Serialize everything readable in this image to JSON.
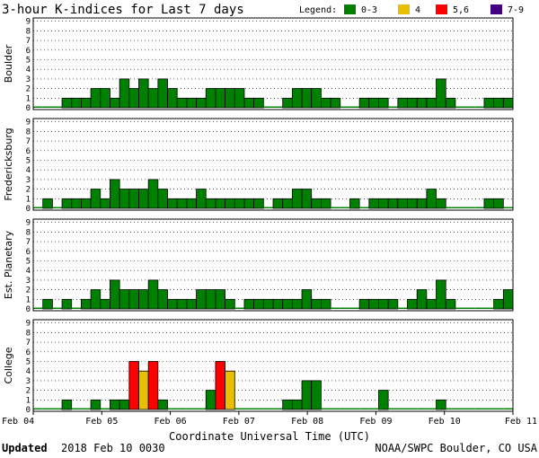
{
  "chart_data": {
    "type": "bar",
    "title": "3-hour K-indices for Last 7 days",
    "legend": {
      "label": "Legend:",
      "placement": "top-right",
      "items": [
        {
          "label": "0-3",
          "color": "#008000"
        },
        {
          "label": "4",
          "color": "#e8c000"
        },
        {
          "label": "5,6",
          "color": "#ff0000"
        },
        {
          "label": "7-9",
          "color": "#400080"
        }
      ]
    },
    "xlabel": "Coordinate Universal Time (UTC)",
    "x_ticks": [
      "Feb 04",
      "Feb 05",
      "Feb 06",
      "Feb 07",
      "Feb 08",
      "Feb 09",
      "Feb 10",
      "Feb 11"
    ],
    "ylim": [
      0,
      9
    ],
    "y_ticks": [
      "0",
      "1",
      "2",
      "3",
      "4",
      "5",
      "6",
      "7",
      "8",
      "9"
    ],
    "grid": true,
    "series": [
      {
        "name": "Boulder",
        "values": [
          0,
          0,
          0,
          1,
          1,
          1,
          2,
          2,
          1,
          3,
          2,
          3,
          2,
          3,
          2,
          1,
          1,
          1,
          2,
          2,
          2,
          2,
          1,
          1,
          0,
          0,
          1,
          2,
          2,
          2,
          1,
          1,
          0,
          0,
          1,
          1,
          1,
          0,
          1,
          1,
          1,
          1,
          3,
          1,
          0,
          0,
          0,
          1,
          1,
          1
        ]
      },
      {
        "name": "Fredericksburg",
        "values": [
          0,
          1,
          0,
          1,
          1,
          1,
          2,
          1,
          3,
          2,
          2,
          2,
          3,
          2,
          1,
          1,
          1,
          2,
          1,
          1,
          1,
          1,
          1,
          1,
          0,
          1,
          1,
          2,
          2,
          1,
          1,
          0,
          0,
          1,
          0,
          1,
          1,
          1,
          1,
          1,
          1,
          2,
          1,
          0,
          0,
          0,
          0,
          1,
          1,
          0
        ]
      },
      {
        "name": "Est. Planetary",
        "values": [
          0,
          1,
          0,
          1,
          0,
          1,
          2,
          1,
          3,
          2,
          2,
          2,
          3,
          2,
          1,
          1,
          1,
          2,
          2,
          2,
          1,
          0,
          1,
          1,
          1,
          1,
          1,
          1,
          2,
          1,
          1,
          0,
          0,
          0,
          1,
          1,
          1,
          1,
          0,
          1,
          2,
          1,
          3,
          1,
          0,
          0,
          0,
          0,
          1,
          2
        ]
      },
      {
        "name": "College",
        "values": [
          0,
          0,
          0,
          1,
          0,
          0,
          1,
          0,
          1,
          1,
          5,
          4,
          5,
          1,
          0,
          0,
          0,
          0,
          2,
          5,
          4,
          0,
          0,
          0,
          0,
          0,
          1,
          1,
          3,
          3,
          0,
          0,
          0,
          0,
          0,
          0,
          2,
          0,
          0,
          0,
          0,
          0,
          1,
          0,
          0,
          0,
          0,
          0,
          0,
          0
        ]
      }
    ]
  },
  "footer": {
    "updated_label": "Updated",
    "updated_value": "2018 Feb 10 0030",
    "credit": "NOAA/SWPC Boulder, CO USA"
  }
}
